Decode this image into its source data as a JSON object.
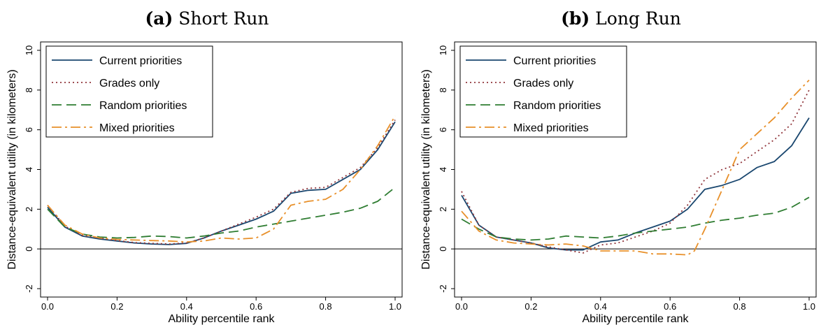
{
  "chart_data": [
    {
      "type": "line",
      "panel_tag": "(a)",
      "title": "Short Run",
      "xlabel": "Ability percentile rank",
      "ylabel": "Distance-equivalent utility (in kilometers)",
      "xlim": [
        0,
        1
      ],
      "ylim": [
        -2,
        10
      ],
      "xticks": [
        "0.0",
        "0.2",
        "0.4",
        "0.6",
        "0.8",
        "1.0"
      ],
      "xtick_values": [
        0,
        0.2,
        0.4,
        0.6,
        0.8,
        1.0
      ],
      "yticks": [
        "-2",
        "0",
        "2",
        "4",
        "6",
        "8",
        "10"
      ],
      "ytick_values": [
        -2,
        0,
        2,
        4,
        6,
        8,
        10
      ],
      "legend_position": "top-left",
      "series": [
        {
          "name": "Current priorities",
          "color": "#1a476f",
          "dash": "solid",
          "x": [
            0,
            0.05,
            0.1,
            0.15,
            0.2,
            0.25,
            0.3,
            0.35,
            0.4,
            0.45,
            0.5,
            0.55,
            0.6,
            0.65,
            0.7,
            0.75,
            0.8,
            0.85,
            0.9,
            0.95,
            1.0
          ],
          "y": [
            2.1,
            1.1,
            0.65,
            0.5,
            0.4,
            0.3,
            0.25,
            0.22,
            0.28,
            0.55,
            0.9,
            1.2,
            1.5,
            1.9,
            2.8,
            2.95,
            3.0,
            3.5,
            4.0,
            5.0,
            6.4
          ]
        },
        {
          "name": "Grades only",
          "color": "#90353b",
          "dash": "dotted",
          "x": [
            0,
            0.05,
            0.1,
            0.15,
            0.2,
            0.25,
            0.3,
            0.35,
            0.4,
            0.45,
            0.5,
            0.55,
            0.6,
            0.65,
            0.7,
            0.75,
            0.8,
            0.85,
            0.9,
            0.95,
            1.0
          ],
          "y": [
            2.2,
            1.15,
            0.68,
            0.55,
            0.42,
            0.32,
            0.28,
            0.25,
            0.3,
            0.55,
            0.9,
            1.25,
            1.6,
            2.0,
            2.85,
            3.05,
            3.1,
            3.6,
            4.1,
            5.1,
            6.5
          ]
        },
        {
          "name": "Random priorities",
          "color": "#2f7d32",
          "dash": "dashed",
          "x": [
            0,
            0.05,
            0.1,
            0.15,
            0.2,
            0.25,
            0.3,
            0.35,
            0.4,
            0.45,
            0.5,
            0.55,
            0.6,
            0.65,
            0.7,
            0.75,
            0.8,
            0.85,
            0.9,
            0.95,
            1.0
          ],
          "y": [
            2.0,
            1.1,
            0.75,
            0.6,
            0.55,
            0.58,
            0.65,
            0.62,
            0.55,
            0.65,
            0.8,
            0.9,
            1.1,
            1.25,
            1.4,
            1.55,
            1.7,
            1.85,
            2.05,
            2.4,
            3.1
          ]
        },
        {
          "name": "Mixed priorities",
          "color": "#e8902a",
          "dash": "dashdot",
          "x": [
            0,
            0.05,
            0.1,
            0.15,
            0.2,
            0.25,
            0.3,
            0.35,
            0.4,
            0.45,
            0.5,
            0.55,
            0.6,
            0.65,
            0.7,
            0.75,
            0.8,
            0.85,
            0.9,
            0.95,
            1.0
          ],
          "y": [
            2.2,
            1.2,
            0.75,
            0.55,
            0.48,
            0.45,
            0.42,
            0.4,
            0.35,
            0.4,
            0.55,
            0.5,
            0.55,
            1.0,
            2.2,
            2.4,
            2.5,
            3.0,
            4.0,
            5.2,
            6.7
          ]
        }
      ]
    },
    {
      "type": "line",
      "panel_tag": "(b)",
      "title": "Long Run",
      "xlabel": "Ability percentile rank",
      "ylabel": "Distance-equivalent utility (in kilometers)",
      "xlim": [
        0,
        1
      ],
      "ylim": [
        -2,
        10
      ],
      "xticks": [
        "0.0",
        "0.2",
        "0.4",
        "0.6",
        "0.8",
        "1.0"
      ],
      "xtick_values": [
        0,
        0.2,
        0.4,
        0.6,
        0.8,
        1.0
      ],
      "yticks": [
        "-2",
        "0",
        "2",
        "4",
        "6",
        "8",
        "10"
      ],
      "ytick_values": [
        -2,
        0,
        2,
        4,
        6,
        8,
        10
      ],
      "legend_position": "top-left",
      "series": [
        {
          "name": "Current priorities",
          "color": "#1a476f",
          "dash": "solid",
          "x": [
            0,
            0.05,
            0.1,
            0.15,
            0.2,
            0.25,
            0.3,
            0.35,
            0.4,
            0.45,
            0.5,
            0.55,
            0.6,
            0.65,
            0.7,
            0.75,
            0.8,
            0.85,
            0.9,
            0.95,
            1.0
          ],
          "y": [
            2.7,
            1.2,
            0.6,
            0.45,
            0.3,
            0.05,
            -0.05,
            -0.05,
            0.35,
            0.45,
            0.8,
            1.1,
            1.4,
            2.0,
            3.0,
            3.2,
            3.5,
            4.1,
            4.4,
            5.2,
            6.6
          ]
        },
        {
          "name": "Grades only",
          "color": "#90353b",
          "dash": "dotted",
          "x": [
            0,
            0.05,
            0.1,
            0.15,
            0.2,
            0.25,
            0.3,
            0.35,
            0.4,
            0.45,
            0.5,
            0.55,
            0.6,
            0.65,
            0.7,
            0.75,
            0.8,
            0.85,
            0.9,
            0.95,
            1.0
          ],
          "y": [
            2.9,
            1.2,
            0.6,
            0.45,
            0.3,
            0.1,
            -0.05,
            -0.2,
            0.2,
            0.3,
            0.6,
            0.9,
            1.3,
            2.2,
            3.5,
            4.0,
            4.3,
            4.9,
            5.5,
            6.3,
            8.0
          ]
        },
        {
          "name": "Random priorities",
          "color": "#2f7d32",
          "dash": "dashed",
          "x": [
            0,
            0.05,
            0.1,
            0.15,
            0.2,
            0.25,
            0.3,
            0.35,
            0.4,
            0.45,
            0.5,
            0.55,
            0.6,
            0.65,
            0.7,
            0.75,
            0.8,
            0.85,
            0.9,
            0.95,
            1.0
          ],
          "y": [
            1.5,
            1.0,
            0.6,
            0.5,
            0.45,
            0.5,
            0.65,
            0.6,
            0.55,
            0.65,
            0.8,
            0.9,
            1.0,
            1.1,
            1.3,
            1.45,
            1.55,
            1.7,
            1.8,
            2.1,
            2.6
          ]
        },
        {
          "name": "Mixed priorities",
          "color": "#e8902a",
          "dash": "dashdot",
          "x": [
            0,
            0.05,
            0.1,
            0.15,
            0.2,
            0.25,
            0.3,
            0.35,
            0.4,
            0.45,
            0.5,
            0.55,
            0.6,
            0.65,
            0.67,
            0.7,
            0.75,
            0.8,
            0.85,
            0.9,
            0.95,
            1.0
          ],
          "y": [
            1.9,
            0.9,
            0.45,
            0.3,
            0.25,
            0.2,
            0.25,
            0.15,
            -0.1,
            -0.1,
            -0.1,
            -0.25,
            -0.25,
            -0.3,
            -0.1,
            1.0,
            3.0,
            5.0,
            5.8,
            6.6,
            7.6,
            8.5
          ]
        }
      ]
    }
  ]
}
